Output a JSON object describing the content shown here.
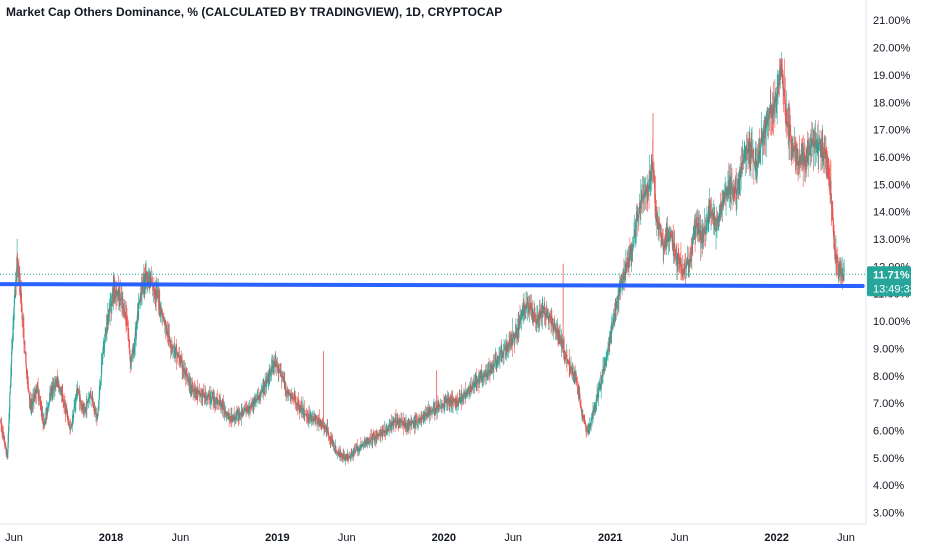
{
  "chart_data": {
    "type": "candlestick",
    "title": "Market Cap Others Dominance, % (CALCULATED BY TRADINGVIEW), 1D, CRYPTOCAP",
    "ylim": [
      2.8,
      21.3
    ],
    "y_ticks": [
      "3.00%",
      "4.00%",
      "5.00%",
      "6.00%",
      "7.00%",
      "8.00%",
      "9.00%",
      "10.00%",
      "11.00%",
      "12.00%",
      "13.00%",
      "14.00%",
      "15.00%",
      "16.00%",
      "17.00%",
      "18.00%",
      "19.00%",
      "20.00%",
      "21.00%"
    ],
    "x_ticks": [
      {
        "label": "Jun",
        "t": 0.0,
        "bold": false
      },
      {
        "label": "2018",
        "t": 0.583,
        "bold": true
      },
      {
        "label": "Jun",
        "t": 1.0,
        "bold": false
      },
      {
        "label": "2019",
        "t": 1.583,
        "bold": true
      },
      {
        "label": "Jun",
        "t": 2.0,
        "bold": false
      },
      {
        "label": "2020",
        "t": 2.583,
        "bold": true
      },
      {
        "label": "Jun",
        "t": 3.0,
        "bold": false
      },
      {
        "label": "2021",
        "t": 3.583,
        "bold": true
      },
      {
        "label": "Jun",
        "t": 4.0,
        "bold": false
      },
      {
        "label": "2022",
        "t": 4.583,
        "bold": true
      },
      {
        "label": "Jun",
        "t": 5.0,
        "bold": false
      }
    ],
    "price_path": [
      [
        -0.08,
        6.3
      ],
      [
        -0.04,
        5.0
      ],
      [
        -0.02,
        8.0
      ],
      [
        0.0,
        10.6
      ],
      [
        0.02,
        12.2
      ],
      [
        0.04,
        11.0
      ],
      [
        0.07,
        8.5
      ],
      [
        0.1,
        6.8
      ],
      [
        0.14,
        7.6
      ],
      [
        0.18,
        6.2
      ],
      [
        0.22,
        7.4
      ],
      [
        0.26,
        7.8
      ],
      [
        0.3,
        7.0
      ],
      [
        0.34,
        6.0
      ],
      [
        0.38,
        7.5
      ],
      [
        0.42,
        6.6
      ],
      [
        0.46,
        7.4
      ],
      [
        0.5,
        6.4
      ],
      [
        0.53,
        8.6
      ],
      [
        0.56,
        10.0
      ],
      [
        0.6,
        11.2
      ],
      [
        0.64,
        10.8
      ],
      [
        0.68,
        10.0
      ],
      [
        0.7,
        8.5
      ],
      [
        0.72,
        9.0
      ],
      [
        0.76,
        11.0
      ],
      [
        0.79,
        11.7
      ],
      [
        0.82,
        11.4
      ],
      [
        0.86,
        11.0
      ],
      [
        0.9,
        10.0
      ],
      [
        0.94,
        9.2
      ],
      [
        0.98,
        8.8
      ],
      [
        1.02,
        8.2
      ],
      [
        1.06,
        7.6
      ],
      [
        1.12,
        7.3
      ],
      [
        1.18,
        7.2
      ],
      [
        1.24,
        7.0
      ],
      [
        1.3,
        6.4
      ],
      [
        1.36,
        6.6
      ],
      [
        1.42,
        6.9
      ],
      [
        1.48,
        7.3
      ],
      [
        1.52,
        7.8
      ],
      [
        1.56,
        8.4
      ],
      [
        1.6,
        8.2
      ],
      [
        1.64,
        7.4
      ],
      [
        1.7,
        7.0
      ],
      [
        1.76,
        6.5
      ],
      [
        1.82,
        6.4
      ],
      [
        1.88,
        6.0
      ],
      [
        1.94,
        5.2
      ],
      [
        2.0,
        5.0
      ],
      [
        2.06,
        5.3
      ],
      [
        2.12,
        5.6
      ],
      [
        2.18,
        5.8
      ],
      [
        2.24,
        6.0
      ],
      [
        2.3,
        6.4
      ],
      [
        2.36,
        6.2
      ],
      [
        2.42,
        6.3
      ],
      [
        2.48,
        6.6
      ],
      [
        2.54,
        6.8
      ],
      [
        2.6,
        7.1
      ],
      [
        2.66,
        7.0
      ],
      [
        2.72,
        7.4
      ],
      [
        2.78,
        7.8
      ],
      [
        2.84,
        8.0
      ],
      [
        2.9,
        8.6
      ],
      [
        2.96,
        9.0
      ],
      [
        3.02,
        9.6
      ],
      [
        3.06,
        10.4
      ],
      [
        3.1,
        10.6
      ],
      [
        3.14,
        10.0
      ],
      [
        3.18,
        10.4
      ],
      [
        3.22,
        10.1
      ],
      [
        3.26,
        9.6
      ],
      [
        3.3,
        9.0
      ],
      [
        3.34,
        8.4
      ],
      [
        3.38,
        7.8
      ],
      [
        3.42,
        6.4
      ],
      [
        3.45,
        5.9
      ],
      [
        3.48,
        6.6
      ],
      [
        3.52,
        7.6
      ],
      [
        3.56,
        8.6
      ],
      [
        3.6,
        10.0
      ],
      [
        3.64,
        11.2
      ],
      [
        3.68,
        12.0
      ],
      [
        3.72,
        12.8
      ],
      [
        3.76,
        14.2
      ],
      [
        3.8,
        14.8
      ],
      [
        3.84,
        15.6
      ],
      [
        3.86,
        13.8
      ],
      [
        3.9,
        12.8
      ],
      [
        3.94,
        13.2
      ],
      [
        3.98,
        12.4
      ],
      [
        4.02,
        11.8
      ],
      [
        4.06,
        12.2
      ],
      [
        4.1,
        13.6
      ],
      [
        4.14,
        13.0
      ],
      [
        4.18,
        14.2
      ],
      [
        4.22,
        13.4
      ],
      [
        4.26,
        14.4
      ],
      [
        4.3,
        15.0
      ],
      [
        4.34,
        14.6
      ],
      [
        4.38,
        15.8
      ],
      [
        4.42,
        16.4
      ],
      [
        4.46,
        15.6
      ],
      [
        4.5,
        16.8
      ],
      [
        4.54,
        17.6
      ],
      [
        4.58,
        18.0
      ],
      [
        4.61,
        19.3
      ],
      [
        4.63,
        18.2
      ],
      [
        4.65,
        17.2
      ],
      [
        4.68,
        16.4
      ],
      [
        4.72,
        15.8
      ],
      [
        4.76,
        16.0
      ],
      [
        4.8,
        16.6
      ],
      [
        4.84,
        16.4
      ],
      [
        4.88,
        16.0
      ],
      [
        4.91,
        14.8
      ],
      [
        4.93,
        12.6
      ],
      [
        4.96,
        11.9
      ],
      [
        4.99,
        11.71
      ]
    ],
    "support_line": {
      "t_start": -0.08,
      "y_start": 11.35,
      "t_end": 5.1,
      "y_end": 11.28,
      "color": "#2962ff"
    },
    "last_value": {
      "value": 11.71,
      "label": "11.71%",
      "countdown": "13:49:33",
      "color": "#26a69a"
    },
    "up_color": "#26a69a",
    "down_color": "#ef5350"
  }
}
